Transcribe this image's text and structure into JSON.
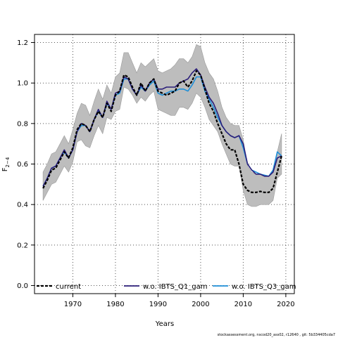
{
  "chart_data": {
    "type": "line",
    "title": "",
    "xlabel": "Years",
    "ylabel": "F",
    "ylabel_sub": "2−4",
    "xlim": [
      1961,
      2022
    ],
    "ylim": [
      -0.04,
      1.24
    ],
    "x_ticks": [
      1970,
      1980,
      1990,
      2000,
      2010,
      2020
    ],
    "y_ticks": [
      0.0,
      0.2,
      0.4,
      0.6,
      0.8,
      1.0,
      1.2
    ],
    "grid": true,
    "grid_style": "dotted",
    "legend_position": "bottom",
    "x": [
      1963,
      1964,
      1965,
      1966,
      1967,
      1968,
      1969,
      1970,
      1971,
      1972,
      1973,
      1974,
      1975,
      1976,
      1977,
      1978,
      1979,
      1980,
      1981,
      1982,
      1983,
      1984,
      1985,
      1986,
      1987,
      1988,
      1989,
      1990,
      1991,
      1992,
      1993,
      1994,
      1995,
      1996,
      1997,
      1998,
      1999,
      2000,
      2001,
      2002,
      2003,
      2004,
      2005,
      2006,
      2007,
      2008,
      2009,
      2010,
      2011,
      2012,
      2013,
      2014,
      2015,
      2016,
      2017,
      2018,
      2019
    ],
    "band": {
      "color": "#bdbdbd",
      "upper": [
        0.56,
        0.6,
        0.65,
        0.66,
        0.7,
        0.74,
        0.7,
        0.77,
        0.85,
        0.9,
        0.89,
        0.84,
        0.91,
        0.97,
        0.92,
        0.99,
        0.95,
        1.03,
        1.05,
        1.15,
        1.15,
        1.1,
        1.05,
        1.1,
        1.08,
        1.1,
        1.12,
        1.06,
        1.05,
        1.06,
        1.07,
        1.09,
        1.12,
        1.12,
        1.1,
        1.13,
        1.19,
        1.18,
        1.1,
        1.05,
        1.02,
        0.96,
        0.88,
        0.83,
        0.8,
        0.79,
        0.79,
        0.72,
        0.59,
        0.56,
        0.55,
        0.55,
        0.54,
        0.54,
        0.57,
        0.66,
        0.75
      ],
      "lower": [
        0.42,
        0.46,
        0.5,
        0.51,
        0.55,
        0.59,
        0.56,
        0.61,
        0.71,
        0.72,
        0.69,
        0.68,
        0.74,
        0.79,
        0.75,
        0.83,
        0.82,
        0.86,
        0.87,
        0.98,
        0.97,
        0.94,
        0.9,
        0.93,
        0.91,
        0.94,
        0.96,
        0.87,
        0.86,
        0.85,
        0.84,
        0.84,
        0.88,
        0.88,
        0.87,
        0.9,
        0.95,
        0.93,
        0.88,
        0.82,
        0.79,
        0.76,
        0.7,
        0.65,
        0.6,
        0.59,
        0.59,
        0.47,
        0.4,
        0.39,
        0.39,
        0.4,
        0.4,
        0.4,
        0.42,
        0.53,
        0.55
      ]
    },
    "series": [
      {
        "name": "current",
        "color": "#000000",
        "dash": "4,2",
        "values": [
          0.48,
          0.52,
          0.57,
          0.58,
          0.62,
          0.66,
          0.63,
          0.68,
          0.77,
          0.8,
          0.79,
          0.76,
          0.82,
          0.86,
          0.83,
          0.9,
          0.86,
          0.94,
          0.96,
          1.04,
          1.03,
          0.98,
          0.94,
          1.0,
          0.96,
          1.0,
          1.02,
          0.96,
          0.95,
          0.94,
          0.95,
          0.96,
          1.0,
          1.01,
          0.98,
          1.01,
          1.06,
          1.04,
          0.97,
          0.9,
          0.86,
          0.8,
          0.75,
          0.7,
          0.67,
          0.67,
          0.6,
          0.5,
          0.47,
          0.46,
          0.46,
          0.465,
          0.46,
          0.46,
          0.48,
          0.56,
          0.64
        ]
      },
      {
        "name": "w.o. IBTS_Q1_gam",
        "color": "#2b1e7a",
        "dash": "",
        "values": [
          0.49,
          0.53,
          0.58,
          0.59,
          0.63,
          0.67,
          0.63,
          0.67,
          0.76,
          0.8,
          0.79,
          0.76,
          0.82,
          0.87,
          0.83,
          0.91,
          0.87,
          0.95,
          0.96,
          1.03,
          1.02,
          0.97,
          0.94,
          0.99,
          0.96,
          1.0,
          1.02,
          0.97,
          0.97,
          0.98,
          0.98,
          0.98,
          1.0,
          1.01,
          1.02,
          1.05,
          1.07,
          1.04,
          0.98,
          0.93,
          0.9,
          0.85,
          0.79,
          0.76,
          0.74,
          0.73,
          0.74,
          0.7,
          0.6,
          0.57,
          0.55,
          0.55,
          0.54,
          0.54,
          0.56,
          0.63,
          0.64
        ]
      },
      {
        "name": "w.o. IBTS_Q3_gam",
        "color": "#1e8fd8",
        "dash": "",
        "values": [
          0.49,
          0.53,
          0.58,
          0.59,
          0.63,
          0.66,
          0.63,
          0.67,
          0.76,
          0.79,
          0.79,
          0.76,
          0.82,
          0.86,
          0.83,
          0.9,
          0.87,
          0.94,
          0.95,
          1.02,
          1.02,
          0.97,
          0.94,
          0.98,
          0.96,
          0.99,
          1.01,
          0.95,
          0.94,
          0.95,
          0.96,
          0.96,
          0.97,
          0.97,
          0.96,
          0.99,
          1.03,
          1.03,
          0.96,
          0.92,
          0.88,
          0.83,
          0.79,
          0.76,
          0.74,
          0.73,
          0.74,
          0.68,
          0.6,
          0.57,
          0.56,
          0.55,
          0.545,
          0.54,
          0.57,
          0.66,
          0.64
        ]
      }
    ]
  },
  "footer_note": "stockassessment.org, nscod20_ass02, r12640 , git: 5b334405cda7"
}
